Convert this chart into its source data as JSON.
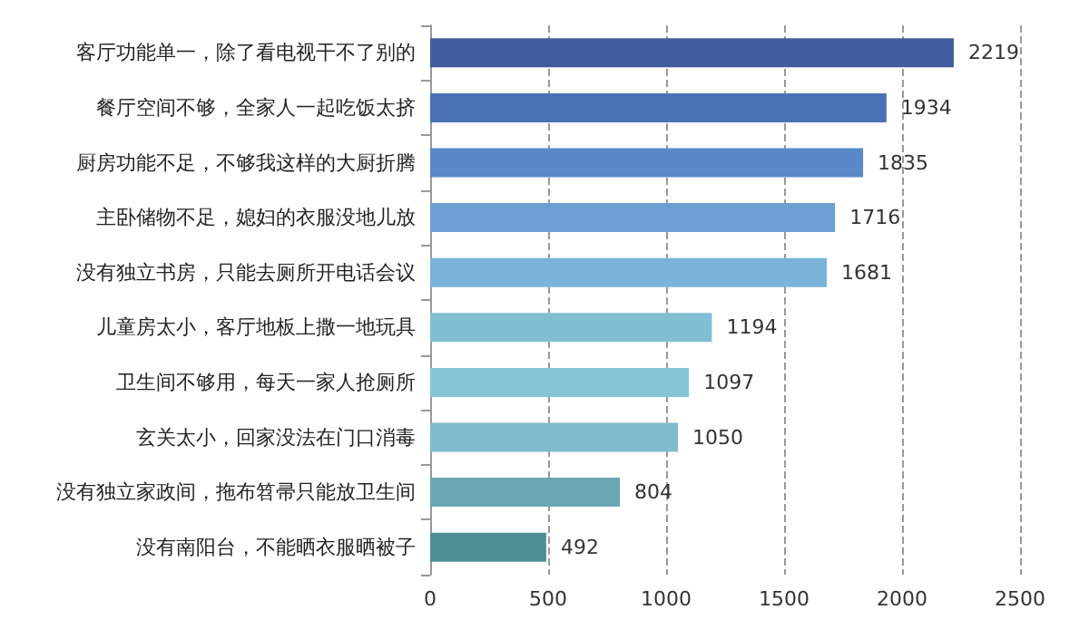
{
  "chart_data": {
    "type": "bar",
    "orientation": "horizontal",
    "categories": [
      "客厅功能单一，除了看电视干不了别的",
      "餐厅空间不够，全家人一起吃饭太挤",
      "厨房功能不足，不够我这样的大厨折腾",
      "主卧储物不足，媳妇的衣服没地儿放",
      "没有独立书房，只能去厕所开电话会议",
      "儿童房太小，客厅地板上撒一地玩具",
      "卫生间不够用，每天一家人抢厕所",
      "玄关太小，回家没法在门口消毒",
      "没有独立家政间，拖布笤帚只能放卫生间",
      "没有南阳台，不能晒衣服晒被子"
    ],
    "values": [
      2219,
      1934,
      1835,
      1716,
      1681,
      1194,
      1097,
      1050,
      804,
      492
    ],
    "colors": [
      "#3f5c9e",
      "#4a70b6",
      "#5a88c8",
      "#6d9fd3",
      "#7ab4d8",
      "#80bfd3",
      "#86c5d6",
      "#7fbccb",
      "#6aa7b2",
      "#4e8e97"
    ],
    "xlim": [
      0,
      2500
    ],
    "xticks": [
      0,
      500,
      1000,
      1500,
      2000,
      2500
    ],
    "grid": "x",
    "data_labels": true
  }
}
